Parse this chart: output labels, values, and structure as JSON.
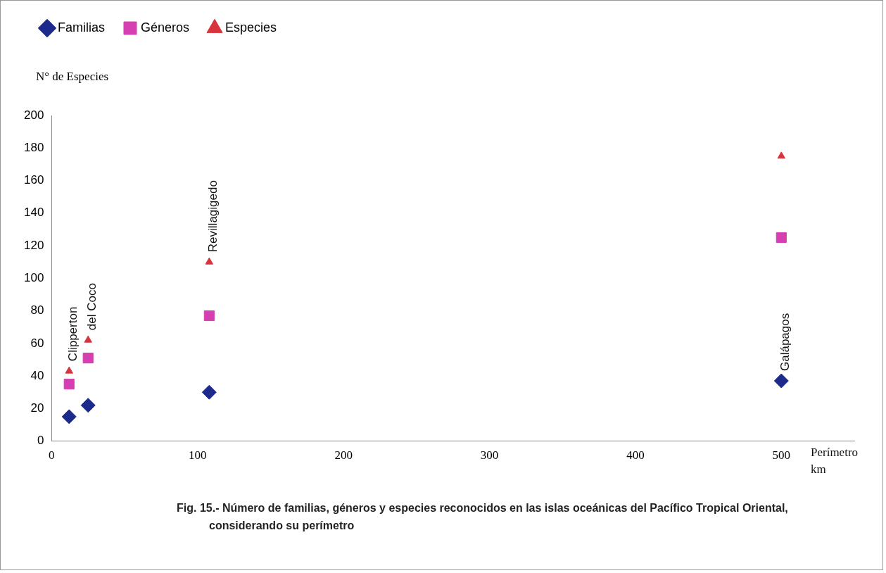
{
  "chart_data": {
    "type": "scatter",
    "ylabel": "N° de Especies",
    "xlabel": "Perímetro km",
    "xlim": [
      0,
      550
    ],
    "xticks": [
      0,
      100,
      200,
      300,
      400,
      500
    ],
    "ylim": [
      0,
      200
    ],
    "yticks": [
      0,
      20,
      40,
      60,
      80,
      100,
      120,
      140,
      160,
      180,
      200
    ],
    "grid": false,
    "legend": "top left",
    "x": [
      12,
      25,
      108,
      500
    ],
    "series": [
      {
        "name": "Familias",
        "color": "#1c2a8c",
        "marker": "diamond",
        "values": [
          15,
          22,
          30,
          37
        ]
      },
      {
        "name": "Géneros",
        "color": "#d53fb2",
        "marker": "square",
        "values": [
          35,
          51,
          77,
          125
        ]
      },
      {
        "name": "Especies",
        "color": "#d8343d",
        "marker": "triangle",
        "values": [
          43,
          62,
          110,
          175
        ]
      }
    ],
    "annotations": [
      {
        "text": "Clipperton",
        "x": 12,
        "y": 43
      },
      {
        "text": "del Coco",
        "x": 25,
        "y": 62
      },
      {
        "text": "Revillagigedo",
        "x": 108,
        "y": 110
      },
      {
        "text": "Galápagos",
        "x": 500,
        "y": 37
      },
      "Fig. 15.- Número de familias, géneros y especies reconocidos en las islas oceánicas del Pacífico Tropical Oriental, considerando su perímetro"
    ]
  }
}
